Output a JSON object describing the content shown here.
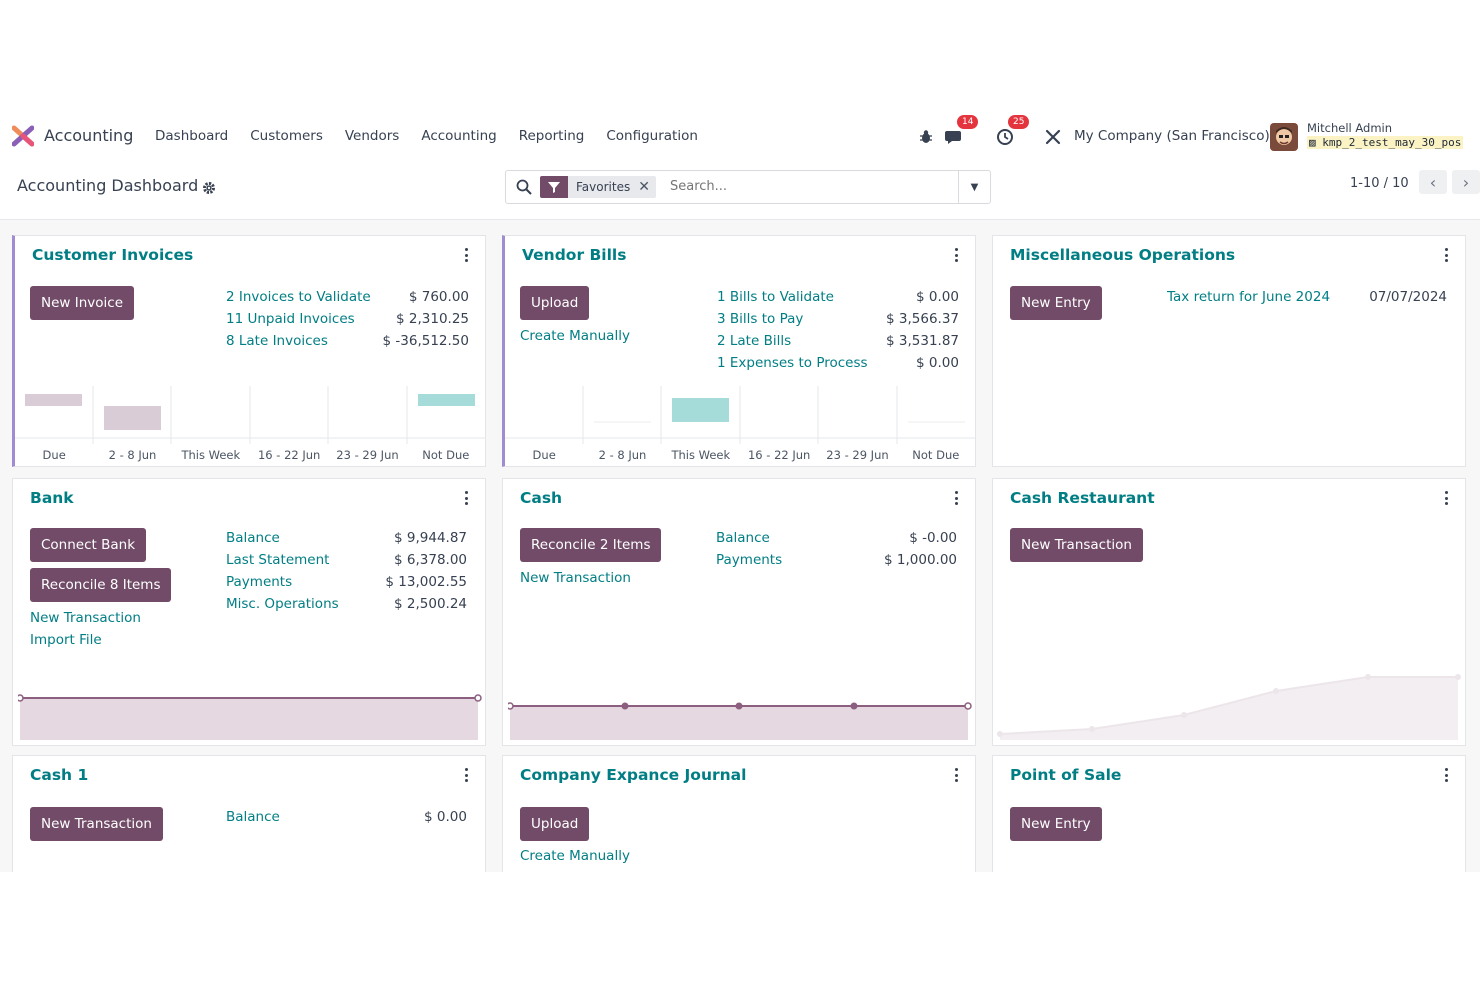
{
  "navbar": {
    "app_name": "Accounting",
    "menu": [
      "Dashboard",
      "Customers",
      "Vendors",
      "Accounting",
      "Reporting",
      "Configuration"
    ],
    "messages_count": "14",
    "activities_count": "25",
    "company": "My Company (San Francisco)",
    "user_name": "Mitchell Admin",
    "database": "kmp_2_test_may_30_pos"
  },
  "control": {
    "breadcrumb": "Accounting Dashboard",
    "search_facet": "Favorites",
    "search_placeholder": "Search...",
    "pager": "1-10 / 10"
  },
  "cards": {
    "customer_invoices": {
      "title": "Customer Invoices",
      "button": "New Invoice",
      "rows": [
        {
          "label": "2 Invoices to Validate",
          "amount": "$ 760.00"
        },
        {
          "label": "11 Unpaid Invoices",
          "amount": "$ 2,310.25"
        },
        {
          "label": "8 Late Invoices",
          "amount": "$ -36,512.50"
        }
      ],
      "chart_labels": [
        "Due",
        "2 - 8 Jun",
        "This Week",
        "16 - 22 Jun",
        "23 - 29 Jun",
        "Not Due"
      ]
    },
    "vendor_bills": {
      "title": "Vendor Bills",
      "button": "Upload",
      "link": "Create Manually",
      "rows": [
        {
          "label": "1 Bills to Validate",
          "amount": "$ 0.00"
        },
        {
          "label": "3 Bills to Pay",
          "amount": "$ 3,566.37"
        },
        {
          "label": "2 Late Bills",
          "amount": "$ 3,531.87"
        },
        {
          "label": "1 Expenses to Process",
          "amount": "$ 0.00"
        }
      ],
      "chart_labels": [
        "Due",
        "2 - 8 Jun",
        "This Week",
        "16 - 22 Jun",
        "23 - 29 Jun",
        "Not Due"
      ]
    },
    "misc_operations": {
      "title": "Miscellaneous Operations",
      "button": "New Entry",
      "item_label": "Tax return for June 2024",
      "item_date": "07/07/2024"
    },
    "bank": {
      "title": "Bank",
      "button_connect": "Connect Bank",
      "button_reconcile": "Reconcile 8 Items",
      "link_new": "New Transaction",
      "link_import": "Import File",
      "rows": [
        {
          "label": "Balance",
          "amount": "$ 9,944.87"
        },
        {
          "label": "Last Statement",
          "amount": "$ 6,378.00"
        },
        {
          "label": "Payments",
          "amount": "$ 13,002.55"
        },
        {
          "label": "Misc. Operations",
          "amount": "$ 2,500.24"
        }
      ]
    },
    "cash": {
      "title": "Cash",
      "button": "Reconcile 2 Items",
      "link": "New Transaction",
      "rows": [
        {
          "label": "Balance",
          "amount": "$ -0.00"
        },
        {
          "label": "Payments",
          "amount": "$ 1,000.00"
        }
      ]
    },
    "cash_restaurant": {
      "title": "Cash Restaurant",
      "button": "New Transaction"
    },
    "cash1": {
      "title": "Cash 1",
      "button": "New Transaction",
      "rows": [
        {
          "label": "Balance",
          "amount": "$ 0.00"
        }
      ]
    },
    "company_expense": {
      "title": "Company Expance Journal",
      "button": "Upload",
      "link": "Create Manually"
    },
    "point_of_sale": {
      "title": "Point of Sale",
      "button": "New Entry"
    }
  },
  "colors": {
    "primary": "#714b67",
    "link": "#017e84",
    "accent_border": "#a18cd1",
    "bar_past": "#d9ccd6",
    "bar_future": "#a5dbd9"
  }
}
